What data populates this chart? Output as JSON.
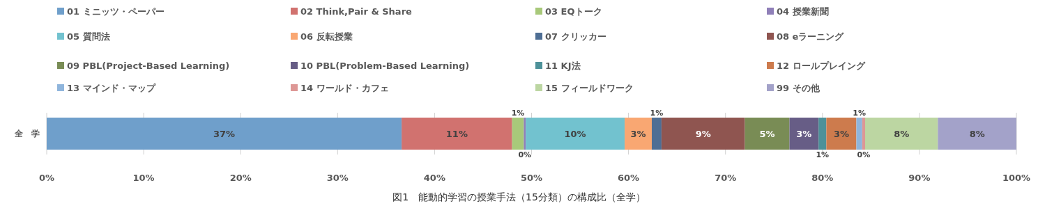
{
  "chart_data": {
    "type": "bar",
    "orientation": "horizontal",
    "stacked": true,
    "categories": [
      "全　学"
    ],
    "xlim": [
      0,
      100
    ],
    "xticks": [
      {
        "value": 0,
        "label": "0%"
      },
      {
        "value": 10,
        "label": "10%"
      },
      {
        "value": 20,
        "label": "20%"
      },
      {
        "value": 30,
        "label": "30%"
      },
      {
        "value": 40,
        "label": "40%"
      },
      {
        "value": 50,
        "label": "50%"
      },
      {
        "value": 60,
        "label": "60%"
      },
      {
        "value": 70,
        "label": "70%"
      },
      {
        "value": 80,
        "label": "80%"
      },
      {
        "value": 90,
        "label": "90%"
      },
      {
        "value": 100,
        "label": "100%"
      }
    ],
    "grid": "x",
    "legend": "top",
    "series": [
      {
        "name": "01 ミニッツ・ペーパー",
        "color": "#6f9fcb",
        "values": [
          36.6
        ],
        "value_labels": [
          "37%"
        ]
      },
      {
        "name": "02 Think,Pair & Share",
        "color": "#d1726f",
        "values": [
          11.4
        ],
        "value_labels": [
          "11%"
        ]
      },
      {
        "name": "03 EQトーク",
        "color": "#a8c97a",
        "values": [
          1.2
        ],
        "value_labels": [
          "1%"
        ]
      },
      {
        "name": "04 授業新聞",
        "color": "#8f7fb8",
        "values": [
          0.2
        ],
        "value_labels": [
          "0%"
        ]
      },
      {
        "name": "05 質問法",
        "color": "#72c2cf",
        "values": [
          10.2
        ],
        "value_labels": [
          "10%"
        ]
      },
      {
        "name": "06 反転授業",
        "color": "#f9a772",
        "values": [
          2.8
        ],
        "value_labels": [
          "3%"
        ]
      },
      {
        "name": "07 クリッカー",
        "color": "#4e6e94",
        "values": [
          1.0
        ],
        "value_labels": [
          "1%"
        ]
      },
      {
        "name": "08 eラーニング",
        "color": "#8f5550",
        "values": [
          8.6
        ],
        "value_labels": [
          "9%"
        ]
      },
      {
        "name": "09 PBL(Project-Based Learning)",
        "color": "#798c55",
        "values": [
          4.6
        ],
        "value_labels": [
          "5%"
        ]
      },
      {
        "name": "10 PBL(Problem-Based Learning)",
        "color": "#675d86",
        "values": [
          3.0
        ],
        "value_labels": [
          "3%"
        ]
      },
      {
        "name": "11 KJ法",
        "color": "#4d9199",
        "values": [
          0.8
        ],
        "value_labels": [
          "1%"
        ]
      },
      {
        "name": "12 ロールプレイング",
        "color": "#cd7b4d",
        "values": [
          3.1
        ],
        "value_labels": [
          "3%"
        ]
      },
      {
        "name": "13 マインド・マップ",
        "color": "#8fb5dc",
        "values": [
          0.6
        ],
        "value_labels": [
          "1%"
        ]
      },
      {
        "name": "14 ワールド・カフェ",
        "color": "#dd9795",
        "values": [
          0.3
        ],
        "value_labels": [
          "0%"
        ]
      },
      {
        "name": "15 フィールドワーク",
        "color": "#bcd6a2",
        "values": [
          7.5
        ],
        "value_labels": [
          "8%"
        ]
      },
      {
        "name": "99 その他",
        "color": "#a3a2c9",
        "values": [
          8.1
        ],
        "value_labels": [
          "8%"
        ]
      }
    ],
    "annotations": [
      "図1　能動的学習の授業手法（15分類）の構成比（全学）"
    ]
  }
}
